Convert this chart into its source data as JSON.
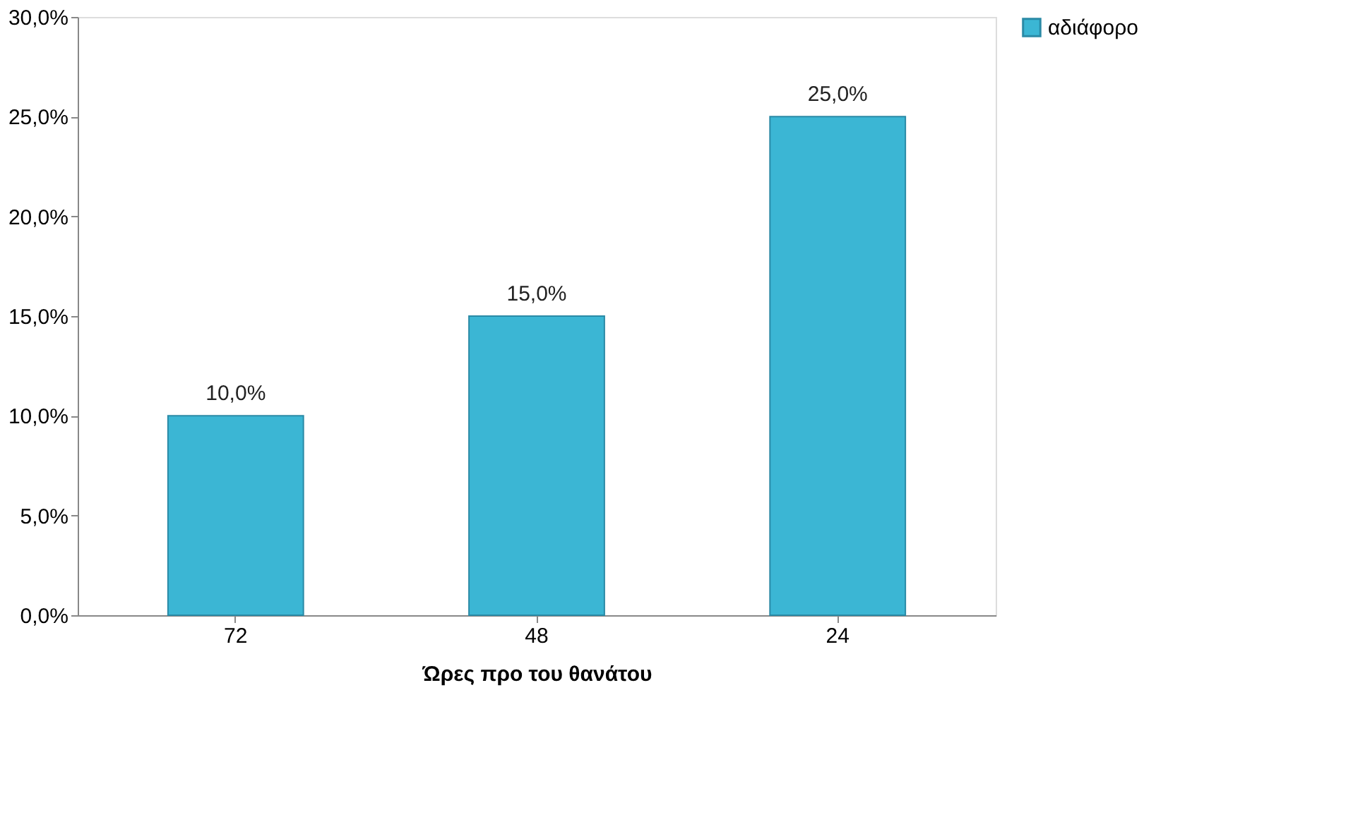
{
  "chart_data": {
    "type": "bar",
    "xlabel": "Ώρες προ του θανάτου",
    "categories": [
      "72",
      "48",
      "24"
    ],
    "series": [
      {
        "name": "αδιάφορο",
        "color": "#3bb6d4",
        "values": [
          10,
          15,
          25
        ],
        "value_labels": [
          "10,0%",
          "15,0%",
          "25,0%"
        ]
      }
    ],
    "ylim": [
      0,
      30
    ],
    "yticks": [
      {
        "value": 0,
        "label": "0,0%"
      },
      {
        "value": 5,
        "label": "5,0%"
      },
      {
        "value": 10,
        "label": "10,0%"
      },
      {
        "value": 15,
        "label": "15,0%"
      },
      {
        "value": 20,
        "label": "20,0%"
      },
      {
        "value": 25,
        "label": "25,0%"
      },
      {
        "value": 30,
        "label": "30,0%"
      }
    ],
    "grid": false,
    "legend": "right"
  }
}
